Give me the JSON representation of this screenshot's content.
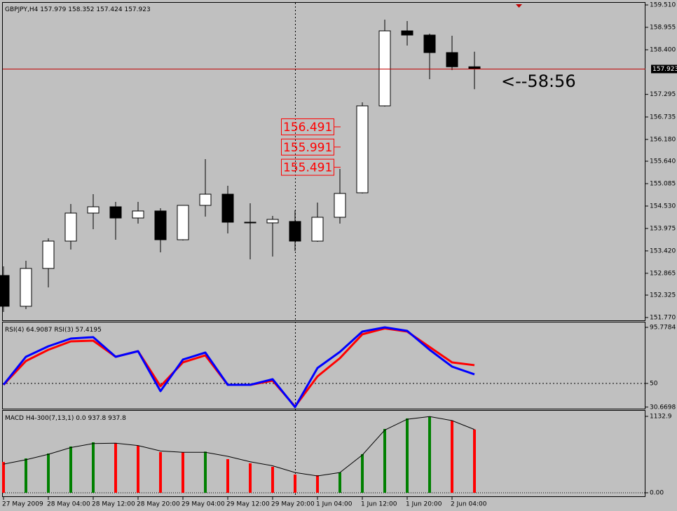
{
  "chart_data": [
    {
      "type": "candlestick",
      "title": "GBPJPY,H4",
      "categories": [
        "27 May 2009",
        null,
        "28 May 04:00",
        null,
        "28 May 12:00",
        null,
        "28 May 20:00",
        null,
        "29 May 04:00",
        null,
        "29 May 12:00",
        null,
        "29 May 20:00",
        null,
        "1 Jun 04:00",
        null,
        "1 Jun 12:00",
        null,
        "1 Jun 20:00",
        null,
        "2 Jun 04:00",
        null
      ],
      "open": [
        152.811,
        152.048,
        152.985,
        153.662,
        154.356,
        154.512,
        154.234,
        154.408,
        153.696,
        154.547,
        154.824,
        154.13,
        154.113,
        154.148,
        153.662,
        154.252,
        154.859,
        157.011,
        158.868,
        158.764,
        158.33,
        157.979
      ],
      "high": [
        153.037,
        153.176,
        153.731,
        154.581,
        154.824,
        154.634,
        154.634,
        154.477,
        154.547,
        155.692,
        155.033,
        154.599,
        154.286,
        154.425,
        154.616,
        155.449,
        157.098,
        159.146,
        159.111,
        158.798,
        158.746,
        158.352
      ],
      "low": [
        151.909,
        151.978,
        152.516,
        153.453,
        153.957,
        153.696,
        154.096,
        153.384,
        153.679,
        154.269,
        153.853,
        153.21,
        153.28,
        153.419,
        153.644,
        154.096,
        154.842,
        156.994,
        158.504,
        157.67,
        157.896,
        157.424
      ],
      "close": [
        152.048,
        152.985,
        153.662,
        154.356,
        154.512,
        154.234,
        154.408,
        153.696,
        154.547,
        154.824,
        154.13,
        154.113,
        154.2,
        153.662,
        154.252,
        154.842,
        157.011,
        158.868,
        158.764,
        158.33,
        157.979,
        157.923
      ],
      "ylim": [
        151.7,
        159.58
      ],
      "yticks": [
        {
          "value": 159.51,
          "label": "159.510"
        },
        158.955,
        {
          "value": 158.4,
          "label": "158.400"
        },
        157.295,
        156.735,
        {
          "value": 156.18,
          "label": "156.180"
        },
        {
          "value": 155.64,
          "label": "155.640"
        },
        155.085,
        {
          "value": 154.53,
          "label": "154.530"
        },
        153.975,
        {
          "value": 153.42,
          "label": "153.420"
        },
        152.865,
        152.325,
        {
          "value": 151.77,
          "label": "151.770"
        }
      ],
      "up_color": "#ffffff",
      "down_color": "#000000",
      "current_price_color": "#c00000",
      "price_levels": [
        156.491,
        155.991,
        155.491
      ],
      "level_color": "#ff0000",
      "countdown": "<--58:56"
    },
    {
      "type": "line",
      "series": [
        {
          "name": "RSI(4)",
          "color": "#ff0000",
          "values": [
            48.86,
            68.31,
            77.47,
            84.33,
            84.91,
            71.75,
            76.32,
            47.71,
            67.17,
            72.89,
            48.86,
            48.86,
            52.29,
            31.2,
            55.72,
            70.6,
            90.06,
            94.9,
            92.35,
            79.76,
            67.17,
            64.9087
          ]
        },
        {
          "name": "RSI(3)",
          "color": "#0000ff",
          "values": [
            48.86,
            71.75,
            80.33,
            86.62,
            87.77,
            71.75,
            76.32,
            43.71,
            69.46,
            75.18,
            48.86,
            48.86,
            53.43,
            30.6698,
            62.59,
            75.75,
            92.35,
            95.7784,
            92.92,
            77.47,
            63.74,
            57.4195
          ]
        }
      ],
      "ylim": [
        29.4,
        100.35
      ],
      "yticks": [
        95.7784,
        50,
        30.6698
      ],
      "level": 50
    },
    {
      "type": "macd",
      "title": "MACD H4-300(7,13,1) 0.0",
      "values": [
        457,
        509,
        582,
        686,
        748,
        738,
        696,
        603,
        598,
        610,
        499,
        437,
        385,
        270,
        260,
        301,
        572,
        946,
        1102,
        1132.9,
        1071,
        937.8
      ],
      "bar_colors": [
        "#ff0000",
        "#008000",
        "#008000",
        "#008000",
        "#008000",
        "#ff0000",
        "#ff0000",
        "#ff0000",
        "#ff0000",
        "#008000",
        "#ff0000",
        "#ff0000",
        "#ff0000",
        "#ff0000",
        "#ff0000",
        "#008000",
        "#008000",
        "#008000",
        "#008000",
        "#008000",
        "#ff0000",
        "#ff0000"
      ],
      "line_values": [
        425,
        490,
        570,
        670,
        730,
        735,
        700,
        620,
        600,
        600,
        540,
        460,
        400,
        300,
        250,
        300,
        560,
        930,
        1090,
        1130,
        1070,
        937.8
      ],
      "line_color": "#000000",
      "ylim": [
        -52,
        1226
      ],
      "yticks": [
        1132.9,
        {
          "value": 0,
          "label": "0.00"
        }
      ]
    }
  ]
}
